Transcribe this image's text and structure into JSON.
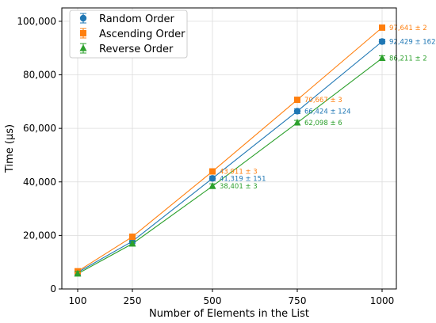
{
  "chart_data": {
    "type": "line",
    "xlabel": "Number of Elements in the List",
    "ylabel": "Time (μs)",
    "categories": [
      "100",
      "250",
      "500",
      "750",
      "1000"
    ],
    "x": [
      100,
      250,
      500,
      750,
      1000
    ],
    "ylim": [
      0,
      105000
    ],
    "yticks": [
      0,
      20000,
      40000,
      60000,
      80000,
      100000
    ],
    "ytick_labels": [
      "0",
      "20,000",
      "40,000",
      "60,000",
      "80,000",
      "100,000"
    ],
    "grid": true,
    "legend_position": "top-left",
    "series": [
      {
        "name": "Random Order",
        "color": "#1f77b4",
        "marker": "circle",
        "values": [
          6200,
          17800,
          41319,
          66424,
          92429
        ],
        "labels": [
          "",
          "",
          "41,319 ± 151",
          "66,424 ± 124",
          "92,429 ± 162"
        ]
      },
      {
        "name": "Ascending Order",
        "color": "#ff7f0e",
        "marker": "square",
        "values": [
          6600,
          19500,
          43911,
          70667,
          97641
        ],
        "labels": [
          "",
          "",
          "43,911 ± 3",
          "70,667 ± 3",
          "97,641 ± 2"
        ]
      },
      {
        "name": "Reverse Order",
        "color": "#2ca02c",
        "marker": "triangle",
        "values": [
          5700,
          16900,
          38401,
          62098,
          86211
        ],
        "labels": [
          "",
          "",
          "38,401 ± 3",
          "62,098 ± 6",
          "86,211 ± 2"
        ]
      }
    ]
  }
}
